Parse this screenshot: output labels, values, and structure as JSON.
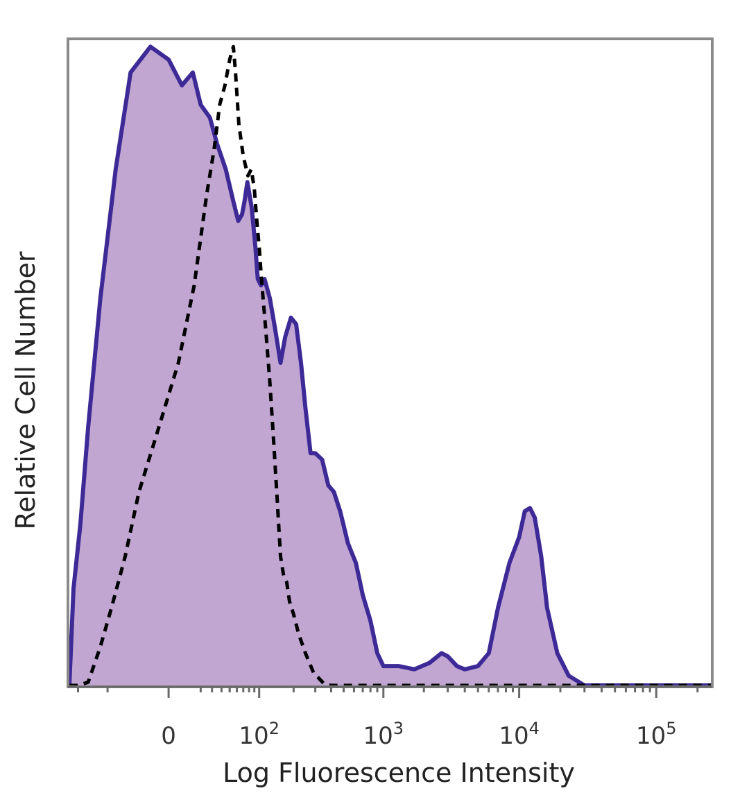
{
  "chart_data": {
    "type": "area",
    "xlabel": "Log Fluorescence Intensity",
    "ylabel": "Relative Cell Number",
    "x_scale": "biexponential",
    "xlim": [
      -120,
      250000
    ],
    "ylim": [
      0,
      1.0
    ],
    "x_ticks": [
      {
        "value": 0,
        "label": "0",
        "base": "0",
        "exp": ""
      },
      {
        "value": 100,
        "label": "10^2",
        "base": "10",
        "exp": "2"
      },
      {
        "value": 1000,
        "label": "10^3",
        "base": "10",
        "exp": "3"
      },
      {
        "value": 10000,
        "label": "10^4",
        "base": "10",
        "exp": "4"
      },
      {
        "value": 100000,
        "label": "10^5",
        "base": "10",
        "exp": "5"
      }
    ],
    "grid": false,
    "series": [
      {
        "style": "filled-solid",
        "color": "#3d2a96",
        "fill": "#c2a6d2",
        "points": [
          [
            -120,
            0.0
          ],
          [
            -110,
            0.15
          ],
          [
            -95,
            0.25
          ],
          [
            -80,
            0.4
          ],
          [
            -60,
            0.6
          ],
          [
            -40,
            0.8
          ],
          [
            -25,
            0.95
          ],
          [
            -10,
            0.99
          ],
          [
            0,
            0.97
          ],
          [
            7,
            0.93
          ],
          [
            14,
            0.95
          ],
          [
            20,
            0.9
          ],
          [
            28,
            0.88
          ],
          [
            35,
            0.84
          ],
          [
            45,
            0.8
          ],
          [
            55,
            0.75
          ],
          [
            62,
            0.72
          ],
          [
            68,
            0.73
          ],
          [
            72,
            0.75
          ],
          [
            77,
            0.78
          ],
          [
            85,
            0.74
          ],
          [
            92,
            0.68
          ],
          [
            97,
            0.63
          ],
          [
            104,
            0.62
          ],
          [
            112,
            0.63
          ],
          [
            125,
            0.6
          ],
          [
            140,
            0.55
          ],
          [
            155,
            0.5
          ],
          [
            170,
            0.54
          ],
          [
            190,
            0.57
          ],
          [
            210,
            0.56
          ],
          [
            230,
            0.5
          ],
          [
            250,
            0.43
          ],
          [
            275,
            0.36
          ],
          [
            300,
            0.36
          ],
          [
            340,
            0.35
          ],
          [
            380,
            0.31
          ],
          [
            420,
            0.3
          ],
          [
            470,
            0.27
          ],
          [
            540,
            0.22
          ],
          [
            620,
            0.19
          ],
          [
            700,
            0.14
          ],
          [
            800,
            0.1
          ],
          [
            900,
            0.05
          ],
          [
            1000,
            0.03
          ],
          [
            1300,
            0.03
          ],
          [
            1700,
            0.025
          ],
          [
            2200,
            0.035
          ],
          [
            2700,
            0.05
          ],
          [
            3000,
            0.045
          ],
          [
            3500,
            0.03
          ],
          [
            4000,
            0.025
          ],
          [
            5000,
            0.03
          ],
          [
            6000,
            0.05
          ],
          [
            7000,
            0.12
          ],
          [
            8500,
            0.19
          ],
          [
            10000,
            0.23
          ],
          [
            11000,
            0.27
          ],
          [
            12000,
            0.275
          ],
          [
            13000,
            0.26
          ],
          [
            14500,
            0.2
          ],
          [
            16000,
            0.12
          ],
          [
            19000,
            0.05
          ],
          [
            23000,
            0.015
          ],
          [
            30000,
            0.0
          ],
          [
            50000,
            0.0
          ],
          [
            100000,
            0.0
          ],
          [
            250000,
            0.0
          ]
        ]
      },
      {
        "style": "dashed",
        "color": "#000000",
        "points": [
          [
            -120,
            0.0
          ],
          [
            -100,
            0.0
          ],
          [
            -80,
            0.005
          ],
          [
            -60,
            0.06
          ],
          [
            -45,
            0.12
          ],
          [
            -30,
            0.2
          ],
          [
            -18,
            0.3
          ],
          [
            -5,
            0.4
          ],
          [
            5,
            0.5
          ],
          [
            15,
            0.62
          ],
          [
            25,
            0.76
          ],
          [
            32,
            0.83
          ],
          [
            38,
            0.9
          ],
          [
            44,
            0.93
          ],
          [
            50,
            0.97
          ],
          [
            55,
            0.99
          ],
          [
            58,
            0.95
          ],
          [
            63,
            0.87
          ],
          [
            70,
            0.82
          ],
          [
            78,
            0.79
          ],
          [
            84,
            0.8
          ],
          [
            90,
            0.77
          ],
          [
            95,
            0.72
          ],
          [
            100,
            0.68
          ],
          [
            105,
            0.63
          ],
          [
            115,
            0.55
          ],
          [
            125,
            0.47
          ],
          [
            135,
            0.38
          ],
          [
            145,
            0.29
          ],
          [
            155,
            0.2
          ],
          [
            165,
            0.17
          ],
          [
            175,
            0.16
          ],
          [
            185,
            0.13
          ],
          [
            200,
            0.11
          ],
          [
            220,
            0.08
          ],
          [
            250,
            0.05
          ],
          [
            290,
            0.02
          ],
          [
            350,
            0.003
          ],
          [
            400,
            0.0
          ],
          [
            1000,
            0.0
          ],
          [
            10000,
            0.0
          ],
          [
            100000,
            0.0
          ],
          [
            250000,
            0.0
          ]
        ]
      }
    ]
  }
}
